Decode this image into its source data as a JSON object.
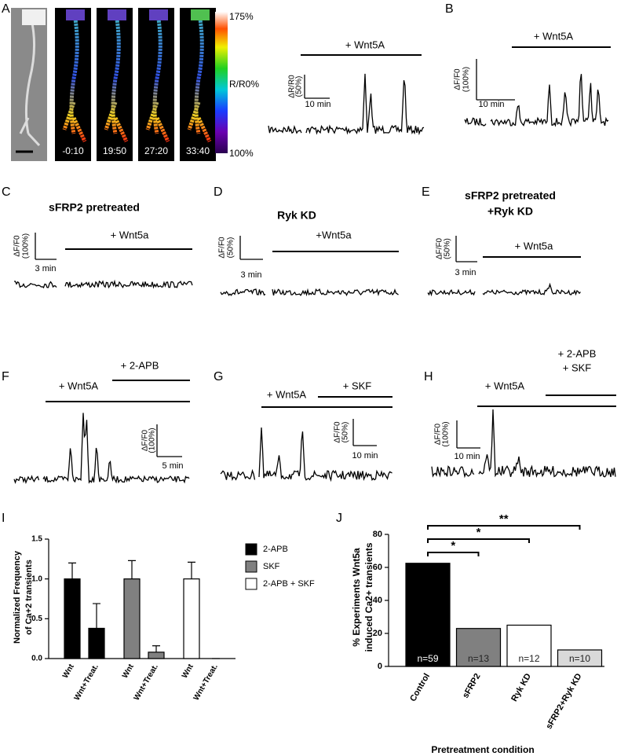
{
  "panels": [
    {
      "letter": "A",
      "treatments": [
        "+ Wnt5A"
      ],
      "scale": {
        "y_label": "ΔR/R0",
        "y_amount": "(50%)",
        "x_amount": "10 min"
      },
      "times": [
        "-0:10",
        "19:50",
        "27:20",
        "33:40"
      ],
      "colorbar_labels": [
        "175%",
        "R/R0%",
        "100%"
      ]
    },
    {
      "letter": "B",
      "treatments": [
        "+ Wnt5A"
      ],
      "scale": {
        "y_label": "ΔF/F0",
        "y_amount": "(100%)",
        "x_amount": "10 min"
      }
    },
    {
      "letter": "C",
      "title_lines": [
        "sFRP2 pretreated"
      ],
      "treatments": [
        "+ Wnt5a"
      ],
      "scale": {
        "y_label": "ΔF/F0",
        "y_amount": "(100%)",
        "x_amount": "3 min"
      }
    },
    {
      "letter": "D",
      "title_lines": [
        "Ryk KD"
      ],
      "treatments": [
        "+Wnt5a"
      ],
      "scale": {
        "y_label": "ΔF/F0",
        "y_amount": "(50%)",
        "x_amount": "3 min"
      }
    },
    {
      "letter": "E",
      "title_lines": [
        "sFRP2 pretreated",
        "+Ryk KD"
      ],
      "treatments": [
        "+ Wnt5a"
      ],
      "scale": {
        "y_label": "ΔF/F0",
        "y_amount": "(50%)",
        "x_amount": "3 min"
      }
    },
    {
      "letter": "F",
      "treatments": [
        "+ Wnt5A",
        "+ 2-APB"
      ],
      "scale": {
        "y_label": "ΔF/F0",
        "y_amount": "(100%)",
        "x_amount": "5 min"
      }
    },
    {
      "letter": "G",
      "treatments": [
        "+ Wnt5A",
        "+ SKF"
      ],
      "scale": {
        "y_label": "ΔF/F0",
        "y_amount": "(50%)",
        "x_amount": "10 min"
      }
    },
    {
      "letter": "H",
      "treatments": [
        "+ Wnt5A",
        "+ 2-APB\n+ SKF"
      ],
      "scale": {
        "y_label": "ΔF/F0",
        "y_amount": "(100%)",
        "x_amount": "10 min"
      }
    }
  ],
  "chart_data": [
    {
      "type": "bar",
      "panel": "I",
      "ylabel_lines": [
        "Normalized Frequency",
        "of Ca+2 transients"
      ],
      "categories": [
        "Wnt",
        "Wnt+Treat.",
        "Wnt",
        "Wnt+Treat.",
        "Wnt",
        "Wnt+Treat."
      ],
      "series": [
        {
          "name": "2-APB",
          "color": "#000000",
          "values": [
            1.0,
            0.38,
            null,
            null,
            null,
            null
          ],
          "errors": [
            0.2,
            0.31,
            null,
            null,
            null,
            null
          ]
        },
        {
          "name": "SKF",
          "color": "#808080",
          "values": [
            null,
            null,
            1.0,
            0.08,
            null,
            null
          ],
          "errors": [
            null,
            null,
            0.23,
            0.08,
            null,
            null
          ]
        },
        {
          "name": "2-APB + SKF",
          "color": "#ffffff",
          "values": [
            null,
            null,
            null,
            null,
            1.0,
            0
          ],
          "errors": [
            null,
            null,
            null,
            null,
            0.21,
            0
          ]
        }
      ],
      "ylim": [
        0,
        1.5
      ],
      "yticks": [
        {
          "value": 0,
          "label": "0.0"
        },
        0.5,
        {
          "value": 1,
          "label": "1.0"
        },
        1.5
      ]
    },
    {
      "type": "bar",
      "panel": "J",
      "ylabel_lines": [
        "% Experiments Wnt5a",
        "induced Ca2+ transients"
      ],
      "xlabel": "Pretreatment condition",
      "categories": [
        "Control",
        "sFRP2",
        "Ryk KD",
        "sFRP2+Ryk KD"
      ],
      "values": [
        62.5,
        23,
        25,
        10
      ],
      "colors": [
        "#000000",
        "#808080",
        "#ffffff",
        "#d9d9d9"
      ],
      "bar_labels": [
        "n=59",
        "n=13",
        "n=12",
        "n=10"
      ],
      "significance": [
        {
          "label": "*",
          "between": [
            "Control",
            "sFRP2"
          ]
        },
        {
          "label": "*",
          "between": [
            "Control",
            "Ryk KD"
          ]
        },
        {
          "label": "**",
          "between": [
            "Control",
            "sFRP2+Ryk KD"
          ]
        }
      ],
      "ylim": [
        0,
        80
      ],
      "yticks": [
        0,
        20,
        40,
        60,
        80
      ]
    }
  ]
}
